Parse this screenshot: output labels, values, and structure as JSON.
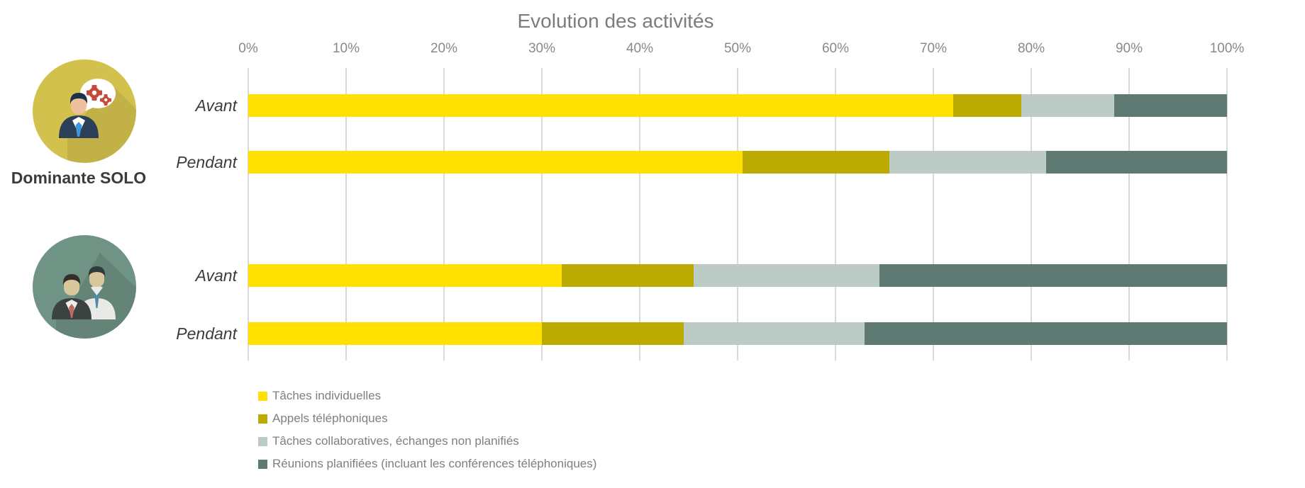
{
  "title": "Evolution des activités",
  "groups": [
    {
      "label": "Dominante SOLO",
      "icon": "solo-person-speech-gears-icon"
    },
    {
      "label": "",
      "icon": "duo-people-icon"
    }
  ],
  "chart_data": {
    "type": "bar",
    "stacked": true,
    "orientation": "horizontal",
    "title": "Evolution des activités",
    "x_axis": {
      "position": "top",
      "min": 0,
      "max": 100,
      "tick_step": 10,
      "tick_labels": [
        "0%",
        "10%",
        "20%",
        "30%",
        "40%",
        "50%",
        "60%",
        "70%",
        "80%",
        "90%",
        "100%"
      ]
    },
    "grid": true,
    "categories": [
      "Avant",
      "Pendant",
      "Avant",
      "Pendant"
    ],
    "category_groups": [
      "Dominante SOLO",
      "Dominante SOLO",
      "",
      ""
    ],
    "series": [
      {
        "name": "Tâches individuelles",
        "color": "#FFE000",
        "values": [
          72,
          50.5,
          32,
          30
        ]
      },
      {
        "name": "Appels téléphoniques",
        "color": "#BBAB00",
        "values": [
          7,
          15,
          13.5,
          14.5
        ]
      },
      {
        "name": "Tâches collaboratives, échanges non planifiés",
        "color": "#BDCBC6",
        "values": [
          9.5,
          16,
          19,
          18.5
        ]
      },
      {
        "name": "Réunions planifiées (incluant les conférences téléphoniques)",
        "color": "#5E7A72",
        "values": [
          11.5,
          18.5,
          35.5,
          37
        ]
      }
    ],
    "legend_position": "bottom-left"
  },
  "colors": {
    "background": "#FFFFFF",
    "gridline": "#D9D9D9",
    "title_text": "#7C7C7C",
    "tick_text": "#898989",
    "row_label_text": "#3C3C3C",
    "legend_text": "#7F7F7F",
    "solo_badge_circle": "#D3C14E",
    "duo_badge_circle": "#6F9385"
  }
}
